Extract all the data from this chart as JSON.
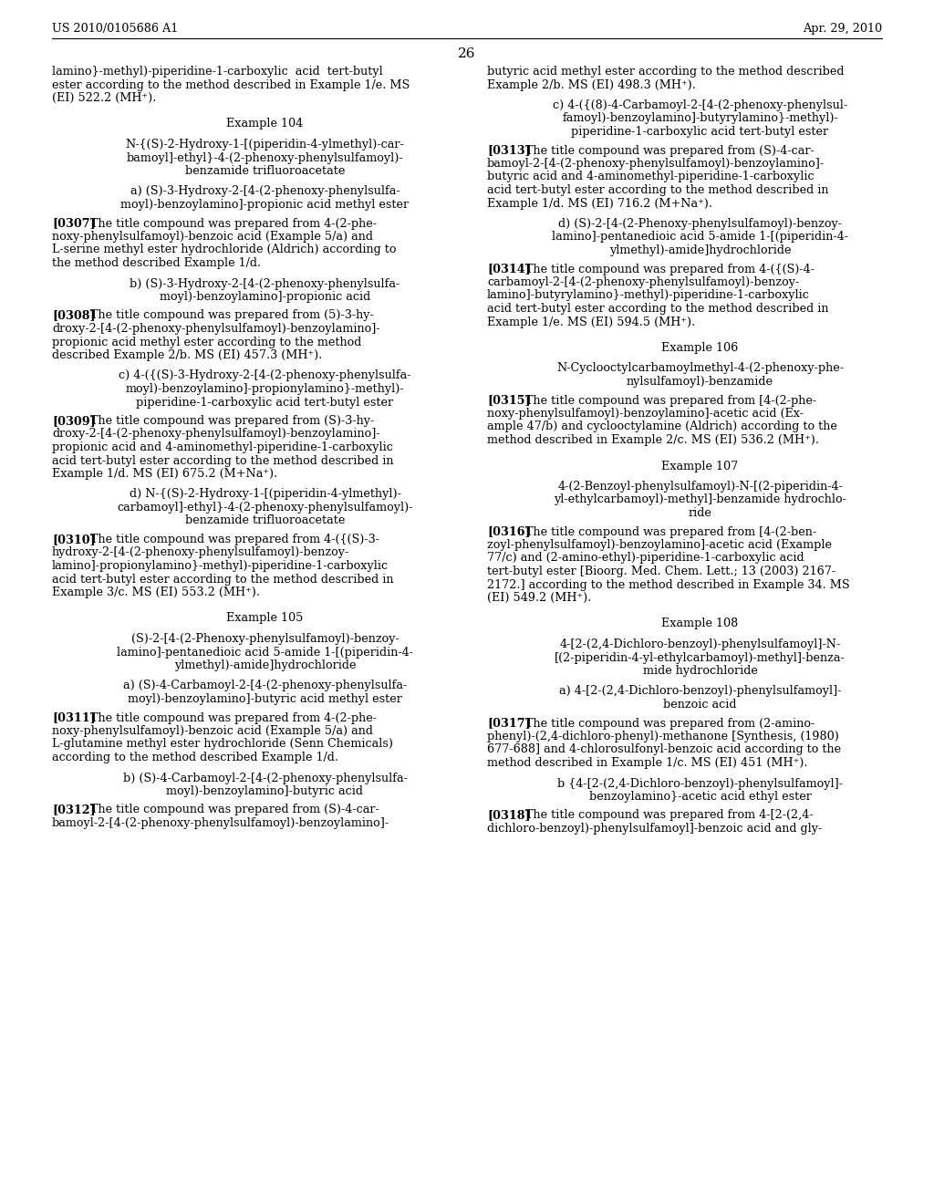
{
  "background_color": "#ffffff",
  "header_left": "US 2010/0105686 A1",
  "header_right": "Apr. 29, 2010",
  "page_number": "26",
  "left_column": [
    {
      "type": "body",
      "lines": [
        "lamino}-methyl)-piperidine-1-carboxylic  acid  tert-butyl",
        "ester according to the method described in Example 1/e. MS",
        "(EI) 522.2 (MH⁺)."
      ]
    },
    {
      "type": "spacer",
      "size": 14
    },
    {
      "type": "example_header",
      "text": "Example 104"
    },
    {
      "type": "spacer",
      "size": 8
    },
    {
      "type": "centered",
      "lines": [
        "N-{(S)-2-Hydroxy-1-[(piperidin-4-ylmethyl)-car-",
        "bamoyl]-ethyl}-4-(2-phenoxy-phenylsulfamoyl)-",
        "benzamide trifluoroacetate"
      ]
    },
    {
      "type": "spacer",
      "size": 8
    },
    {
      "type": "centered",
      "lines": [
        "a) (S)-3-Hydroxy-2-[4-(2-phenoxy-phenylsulfa-",
        "moyl)-benzoylamino]-propionic acid methyl ester"
      ]
    },
    {
      "type": "spacer",
      "size": 6
    },
    {
      "type": "paragraph",
      "tag": "[0307]",
      "lines": [
        "The title compound was prepared from 4-(2-phe-",
        "noxy-phenylsulfamoyl)-benzoic acid (Example 5/a) and",
        "L-serine methyl ester hydrochloride (Aldrich) according to",
        "the method described Example 1/d."
      ]
    },
    {
      "type": "spacer",
      "size": 8
    },
    {
      "type": "centered",
      "lines": [
        "b) (S)-3-Hydroxy-2-[4-(2-phenoxy-phenylsulfa-",
        "moyl)-benzoylamino]-propionic acid"
      ]
    },
    {
      "type": "spacer",
      "size": 6
    },
    {
      "type": "paragraph",
      "tag": "[0308]",
      "lines": [
        "The title compound was prepared from (5)-3-hy-",
        "droxy-2-[4-(2-phenoxy-phenylsulfamoyl)-benzoylamino]-",
        "propionic acid methyl ester according to the method",
        "described Example 2/b. MS (EI) 457.3 (MH⁺)."
      ]
    },
    {
      "type": "spacer",
      "size": 8
    },
    {
      "type": "centered",
      "lines": [
        "c) 4-({(S)-3-Hydroxy-2-[4-(2-phenoxy-phenylsulfa-",
        "moyl)-benzoylamino]-propionylamino}-methyl)-",
        "piperidine-1-carboxylic acid tert-butyl ester"
      ]
    },
    {
      "type": "spacer",
      "size": 6
    },
    {
      "type": "paragraph",
      "tag": "[0309]",
      "lines": [
        "The title compound was prepared from (S)-3-hy-",
        "droxy-2-[4-(2-phenoxy-phenylsulfamoyl)-benzoylamino]-",
        "propionic acid and 4-aminomethyl-piperidine-1-carboxylic",
        "acid tert-butyl ester according to the method described in",
        "Example 1/d. MS (EI) 675.2 (M+Na⁺)."
      ]
    },
    {
      "type": "spacer",
      "size": 8
    },
    {
      "type": "centered",
      "lines": [
        "d) N-{(S)-2-Hydroxy-1-[(piperidin-4-ylmethyl)-",
        "carbamoyl]-ethyl}-4-(2-phenoxy-phenylsulfamoyl)-",
        "benzamide trifluoroacetate"
      ]
    },
    {
      "type": "spacer",
      "size": 6
    },
    {
      "type": "paragraph",
      "tag": "[0310]",
      "lines": [
        "The title compound was prepared from 4-({(S)-3-",
        "hydroxy-2-[4-(2-phenoxy-phenylsulfamoyl)-benzoy-",
        "lamino]-propionylamino}-methyl)-piperidine-1-carboxylic",
        "acid tert-butyl ester according to the method described in",
        "Example 3/c. MS (EI) 553.2 (MH⁺)."
      ]
    },
    {
      "type": "spacer",
      "size": 14
    },
    {
      "type": "example_header",
      "text": "Example 105"
    },
    {
      "type": "spacer",
      "size": 8
    },
    {
      "type": "centered",
      "lines": [
        "(S)-2-[4-(2-Phenoxy-phenylsulfamoyl)-benzoy-",
        "lamino]-pentanedioic acid 5-amide 1-[(piperidin-4-",
        "ylmethyl)-amide]hydrochloride"
      ]
    },
    {
      "type": "spacer",
      "size": 8
    },
    {
      "type": "centered",
      "lines": [
        "a) (S)-4-Carbamoyl-2-[4-(2-phenoxy-phenylsulfa-",
        "moyl)-benzoylamino]-butyric acid methyl ester"
      ]
    },
    {
      "type": "spacer",
      "size": 6
    },
    {
      "type": "paragraph",
      "tag": "[0311]",
      "lines": [
        "The title compound was prepared from 4-(2-phe-",
        "noxy-phenylsulfamoyl)-benzoic acid (Example 5/a) and",
        "L-glutamine methyl ester hydrochloride (Senn Chemicals)",
        "according to the method described Example 1/d."
      ]
    },
    {
      "type": "spacer",
      "size": 8
    },
    {
      "type": "centered",
      "lines": [
        "b) (S)-4-Carbamoyl-2-[4-(2-phenoxy-phenylsulfa-",
        "moyl)-benzoylamino]-butyric acid"
      ]
    },
    {
      "type": "spacer",
      "size": 6
    },
    {
      "type": "paragraph",
      "tag": "[0312]",
      "lines": [
        "The title compound was prepared from (S)-4-car-",
        "bamoyl-2-[4-(2-phenoxy-phenylsulfamoyl)-benzoylamino]-"
      ]
    }
  ],
  "right_column": [
    {
      "type": "body",
      "lines": [
        "butyric acid methyl ester according to the method described",
        "Example 2/b. MS (EI) 498.3 (MH⁺)."
      ]
    },
    {
      "type": "spacer",
      "size": 8
    },
    {
      "type": "centered",
      "lines": [
        "c) 4-({(8)-4-Carbamoyl-2-[4-(2-phenoxy-phenylsul-",
        "famoyl)-benzoylamino]-butyrylamino}-methyl)-",
        "piperidine-1-carboxylic acid tert-butyl ester"
      ]
    },
    {
      "type": "spacer",
      "size": 6
    },
    {
      "type": "paragraph",
      "tag": "[0313]",
      "lines": [
        "The title compound was prepared from (S)-4-car-",
        "bamoyl-2-[4-(2-phenoxy-phenylsulfamoyl)-benzoylamino]-",
        "butyric acid and 4-aminomethyl-piperidine-1-carboxylic",
        "acid tert-butyl ester according to the method described in",
        "Example 1/d. MS (EI) 716.2 (M+Na⁺)."
      ]
    },
    {
      "type": "spacer",
      "size": 8
    },
    {
      "type": "centered",
      "lines": [
        "d) (S)-2-[4-(2-Phenoxy-phenylsulfamoyl)-benzoy-",
        "lamino]-pentanedioic acid 5-amide 1-[(piperidin-4-",
        "ylmethyl)-amide]hydrochloride"
      ]
    },
    {
      "type": "spacer",
      "size": 6
    },
    {
      "type": "paragraph",
      "tag": "[0314]",
      "lines": [
        "The title compound was prepared from 4-({(S)-4-",
        "carbamoyl-2-[4-(2-phenoxy-phenylsulfamoyl)-benzoy-",
        "lamino]-butyrylamino}-methyl)-piperidine-1-carboxylic",
        "acid tert-butyl ester according to the method described in",
        "Example 1/e. MS (EI) 594.5 (MH⁺)."
      ]
    },
    {
      "type": "spacer",
      "size": 14
    },
    {
      "type": "example_header",
      "text": "Example 106"
    },
    {
      "type": "spacer",
      "size": 8
    },
    {
      "type": "centered",
      "lines": [
        "N-Cyclooctylcarbamoylmethyl-4-(2-phenoxy-phe-",
        "nylsulfamoyl)-benzamide"
      ]
    },
    {
      "type": "spacer",
      "size": 6
    },
    {
      "type": "paragraph",
      "tag": "[0315]",
      "lines": [
        "The title compound was prepared from [4-(2-phe-",
        "noxy-phenylsulfamoyl)-benzoylamino]-acetic acid (Ex-",
        "ample 47/b) and cyclooctylamine (Aldrich) according to the",
        "method described in Example 2/c. MS (EI) 536.2 (MH⁺)."
      ]
    },
    {
      "type": "spacer",
      "size": 14
    },
    {
      "type": "example_header",
      "text": "Example 107"
    },
    {
      "type": "spacer",
      "size": 8
    },
    {
      "type": "centered",
      "lines": [
        "4-(2-Benzoyl-phenylsulfamoyl)-N-[(2-piperidin-4-",
        "yl-ethylcarbamoyl)-methyl]-benzamide hydrochlo-",
        "ride"
      ]
    },
    {
      "type": "spacer",
      "size": 6
    },
    {
      "type": "paragraph",
      "tag": "[0316]",
      "lines": [
        "The title compound was prepared from [4-(2-ben-",
        "zoyl-phenylsulfamoyl)-benzoylamino]-acetic acid (Example",
        "77/c) and (2-amino-ethyl)-piperidine-1-carboxylic acid",
        "tert-butyl ester [Bioorg. Med. Chem. Lett.; 13 (2003) 2167-",
        "2172.] according to the method described in Example 34. MS",
        "(EI) 549.2 (MH⁺)."
      ]
    },
    {
      "type": "spacer",
      "size": 14
    },
    {
      "type": "example_header",
      "text": "Example 108"
    },
    {
      "type": "spacer",
      "size": 8
    },
    {
      "type": "centered",
      "lines": [
        "4-[2-(2,4-Dichloro-benzoyl)-phenylsulfamoyl]-N-",
        "[(2-piperidin-4-yl-ethylcarbamoyl)-methyl]-benza-",
        "mide hydrochloride"
      ]
    },
    {
      "type": "spacer",
      "size": 8
    },
    {
      "type": "centered",
      "lines": [
        "a) 4-[2-(2,4-Dichloro-benzoyl)-phenylsulfamoyl]-",
        "benzoic acid"
      ]
    },
    {
      "type": "spacer",
      "size": 6
    },
    {
      "type": "paragraph",
      "tag": "[0317]",
      "lines": [
        "The title compound was prepared from (2-amino-",
        "phenyl)-(2,4-dichloro-phenyl)-methanone [Synthesis, (1980)",
        "677-688] and 4-chlorosulfonyl-benzoic acid according to the",
        "method described in Example 1/c. MS (EI) 451 (MH⁺)."
      ]
    },
    {
      "type": "spacer",
      "size": 8
    },
    {
      "type": "centered",
      "lines": [
        "b {4-[2-(2,4-Dichloro-benzoyl)-phenylsulfamoyl]-",
        "benzoylamino}-acetic acid ethyl ester"
      ]
    },
    {
      "type": "spacer",
      "size": 6
    },
    {
      "type": "paragraph",
      "tag": "[0318]",
      "lines": [
        "The title compound was prepared from 4-[2-(2,4-",
        "dichloro-benzoyl)-phenylsulfamoyl]-benzoic acid and gly-"
      ]
    }
  ]
}
